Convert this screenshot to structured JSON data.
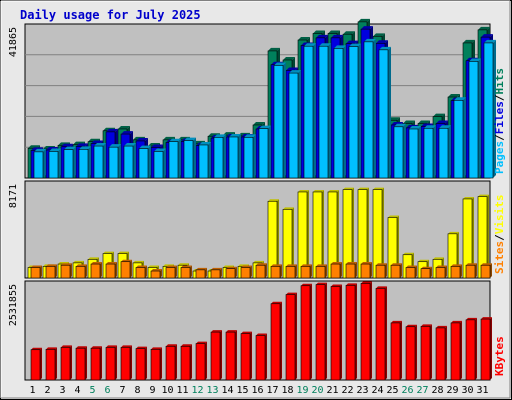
{
  "title": "Daily usage for July 2025",
  "colors": {
    "hits": "#00805c",
    "files": "#0000e0",
    "pages": "#00c0ff",
    "visits": "#ffff00",
    "sites": "#ff8000",
    "kbytes": "#ff0000",
    "panel": "#c0c0c0",
    "frame": "#e8e8e8",
    "weekend": "#00805c"
  },
  "chart_data": [
    {
      "type": "bar",
      "panel": "hits_files_pages",
      "ymax_label": "41865",
      "ymax": 41865,
      "grid": true,
      "categories": [
        "1",
        "2",
        "3",
        "4",
        "5",
        "6",
        "7",
        "8",
        "9",
        "10",
        "11",
        "12",
        "13",
        "14",
        "15",
        "16",
        "17",
        "18",
        "19",
        "20",
        "21",
        "22",
        "23",
        "24",
        "25",
        "26",
        "27",
        "28",
        "29",
        "30",
        "31"
      ],
      "weekend_days": [
        "5",
        "6",
        "12",
        "13",
        "19",
        "20",
        "26",
        "27"
      ],
      "legend": [
        {
          "key": "pages",
          "label": "Pages"
        },
        {
          "key": "sep1",
          "label": "/"
        },
        {
          "key": "files",
          "label": "Files"
        },
        {
          "key": "sep2",
          "label": "/"
        },
        {
          "key": "hits",
          "label": "Hits"
        }
      ],
      "series": [
        {
          "name": "Hits",
          "color_key": "hits",
          "values": [
            8200,
            8000,
            9000,
            9200,
            10000,
            13000,
            13500,
            10500,
            8800,
            10500,
            10500,
            9400,
            11500,
            11800,
            11600,
            14600,
            35000,
            32500,
            38000,
            39800,
            39800,
            39600,
            43000,
            39000,
            15900,
            15000,
            15000,
            16900,
            22300,
            37200,
            40800
          ]
        },
        {
          "name": "Files",
          "color_key": "files",
          "values": [
            7600,
            7700,
            8600,
            8700,
            9500,
            12700,
            12100,
            10200,
            8400,
            9800,
            10100,
            8900,
            11000,
            11300,
            11300,
            13500,
            31200,
            29600,
            36500,
            38600,
            38600,
            37000,
            41000,
            37100,
            14600,
            13800,
            14200,
            15000,
            21300,
            32300,
            38800
          ]
        },
        {
          "name": "Pages",
          "color_key": "pages",
          "values": [
            7200,
            7300,
            7800,
            7900,
            8800,
            8500,
            8800,
            8100,
            7300,
            10000,
            10300,
            9100,
            11200,
            11300,
            11200,
            13600,
            31000,
            28900,
            36300,
            36300,
            35700,
            36200,
            37500,
            35300,
            14100,
            13500,
            13700,
            13700,
            21400,
            32100,
            37200
          ]
        }
      ]
    },
    {
      "type": "bar",
      "panel": "visits_sites",
      "ymax_label": "8171",
      "ymax": 8171,
      "grid": false,
      "categories": [
        "1",
        "2",
        "3",
        "4",
        "5",
        "6",
        "7",
        "8",
        "9",
        "10",
        "11",
        "12",
        "13",
        "14",
        "15",
        "16",
        "17",
        "18",
        "19",
        "20",
        "21",
        "22",
        "23",
        "24",
        "25",
        "26",
        "27",
        "28",
        "29",
        "30",
        "31"
      ],
      "legend": [
        {
          "key": "sites",
          "label": "Sites"
        },
        {
          "key": "sep",
          "label": "/"
        },
        {
          "key": "visits",
          "label": "Visits"
        }
      ],
      "series": [
        {
          "name": "Visits",
          "color_key": "visits",
          "values": [
            900,
            1000,
            1200,
            1300,
            1600,
            2100,
            2100,
            1300,
            900,
            1000,
            1100,
            600,
            600,
            900,
            1000,
            1300,
            6600,
            5900,
            7400,
            7400,
            7400,
            7600,
            7600,
            7600,
            5200,
            2000,
            1400,
            1600,
            3800,
            6800,
            7000
          ]
        },
        {
          "name": "Sites",
          "color_key": "sites",
          "values": [
            900,
            1000,
            1100,
            1000,
            1200,
            1200,
            1400,
            900,
            600,
            900,
            900,
            700,
            700,
            800,
            900,
            1100,
            1000,
            1000,
            1000,
            1000,
            1200,
            1200,
            1200,
            1100,
            1100,
            900,
            800,
            900,
            1000,
            1100,
            1100
          ]
        }
      ]
    },
    {
      "type": "bar",
      "panel": "kbytes",
      "ymax_label": "2531855",
      "ymax": 2531855,
      "grid": false,
      "categories": [
        "1",
        "2",
        "3",
        "4",
        "5",
        "6",
        "7",
        "8",
        "9",
        "10",
        "11",
        "12",
        "13",
        "14",
        "15",
        "16",
        "17",
        "18",
        "19",
        "20",
        "21",
        "22",
        "23",
        "24",
        "25",
        "26",
        "27",
        "28",
        "29",
        "30",
        "31"
      ],
      "legend": [
        {
          "key": "kbytes",
          "label": "KBytes"
        }
      ],
      "series": [
        {
          "name": "KBytes",
          "color_key": "kbytes",
          "values": [
            790000,
            800000,
            850000,
            830000,
            830000,
            850000,
            850000,
            820000,
            800000,
            880000,
            880000,
            950000,
            1250000,
            1250000,
            1210000,
            1160000,
            1990000,
            2230000,
            2460000,
            2490000,
            2440000,
            2470000,
            2520000,
            2390000,
            1490000,
            1390000,
            1400000,
            1360000,
            1490000,
            1570000,
            1590000
          ]
        }
      ]
    }
  ]
}
